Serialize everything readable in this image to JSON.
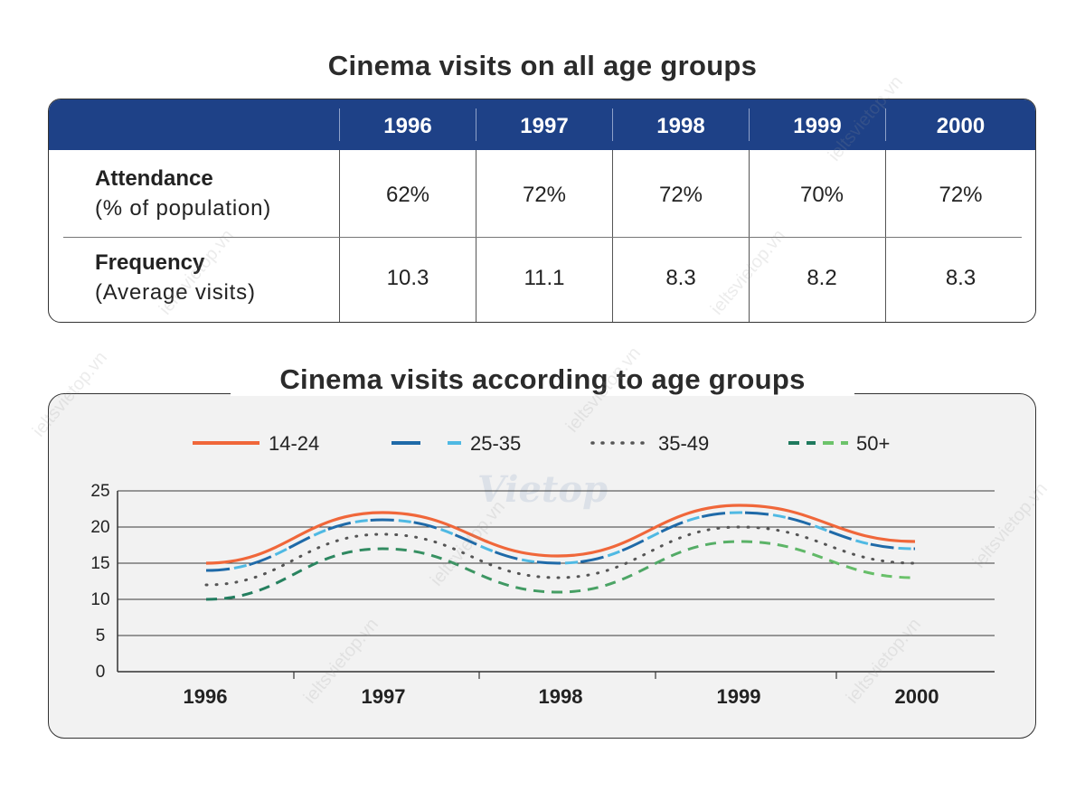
{
  "table_title": "Cinema visits on all age groups",
  "chart_title": "Cinema visits according to age groups",
  "watermark": "ieltsvietop.vn",
  "logo_text": "Vietop",
  "colors": {
    "header_bg": "#1e4187",
    "s1": "#f0673a",
    "s2_a": "#1f6aa8",
    "s2_b": "#4fb9e3",
    "s3": "#555555",
    "s4_a": "#1f7a5e",
    "s4_b": "#6cc36a"
  },
  "table": {
    "years": [
      "1996",
      "1997",
      "1998",
      "1999",
      "2000"
    ],
    "rows": [
      {
        "label": "Attendance",
        "note": "(% of population)",
        "values": [
          "62%",
          "72%",
          "72%",
          "70%",
          "72%"
        ]
      },
      {
        "label": "Frequency",
        "note": "(Average visits)",
        "values": [
          "10.3",
          "11.1",
          "8.3",
          "8.2",
          "8.3"
        ]
      }
    ]
  },
  "chart_data": {
    "type": "line",
    "title": "Cinema visits according to age groups",
    "x": [
      "1996",
      "1997",
      "1998",
      "1999",
      "2000"
    ],
    "ylim": [
      0,
      25
    ],
    "yticks": [
      "0",
      "5",
      "10",
      "15",
      "20",
      "25"
    ],
    "grid": true,
    "legend_position": "top",
    "series": [
      {
        "name": "14-24",
        "values": [
          15,
          22,
          16,
          23,
          18
        ]
      },
      {
        "name": "25-35",
        "values": [
          14,
          21,
          15,
          22,
          17
        ]
      },
      {
        "name": "35-49",
        "values": [
          12,
          19,
          13,
          20,
          15
        ]
      },
      {
        "name": "50+",
        "values": [
          10,
          17,
          11,
          18,
          13
        ]
      }
    ]
  }
}
